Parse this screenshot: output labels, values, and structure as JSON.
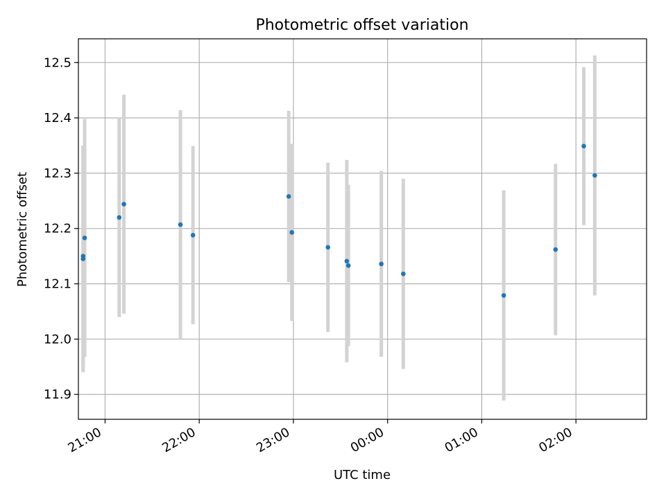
{
  "chart_data": {
    "type": "scatter",
    "title": "Photometric offset variation",
    "xlabel": "UTC time",
    "ylabel": "Photometric offset",
    "x_axis": {
      "type": "time",
      "range": [
        "20:43",
        "26:45"
      ],
      "ticks": [
        {
          "t": "21:00",
          "label": "21:00"
        },
        {
          "t": "22:00",
          "label": "22:00"
        },
        {
          "t": "23:00",
          "label": "23:00"
        },
        {
          "t": "24:00",
          "label": "00:00"
        },
        {
          "t": "25:00",
          "label": "01:00"
        },
        {
          "t": "26:00",
          "label": "02:00"
        }
      ]
    },
    "y_axis": {
      "range": [
        11.855,
        12.543
      ],
      "ticks": [
        {
          "v": 11.9,
          "label": "11.9"
        },
        {
          "v": 12.0,
          "label": "12.0"
        },
        {
          "v": 12.1,
          "label": "12.1"
        },
        {
          "v": 12.2,
          "label": "12.2"
        },
        {
          "v": 12.3,
          "label": "12.3"
        },
        {
          "v": 12.4,
          "label": "12.4"
        },
        {
          "v": 12.5,
          "label": "12.5"
        }
      ]
    },
    "grid": true,
    "marker_color": "#1f77b4",
    "errorbar_color": "#d3d3d3",
    "points": [
      {
        "t": "20:46",
        "y": 12.145,
        "err": 0.205
      },
      {
        "t": "20:46",
        "y": 12.15,
        "err": 0.2
      },
      {
        "t": "20:47",
        "y": 12.183,
        "err": 0.215
      },
      {
        "t": "21:09",
        "y": 12.22,
        "err": 0.18
      },
      {
        "t": "21:12",
        "y": 12.244,
        "err": 0.198
      },
      {
        "t": "21:48",
        "y": 12.207,
        "err": 0.207
      },
      {
        "t": "21:56",
        "y": 12.188,
        "err": 0.161
      },
      {
        "t": "22:57",
        "y": 12.258,
        "err": 0.155
      },
      {
        "t": "22:59",
        "y": 12.193,
        "err": 0.16
      },
      {
        "t": "23:22",
        "y": 12.166,
        "err": 0.153
      },
      {
        "t": "23:34",
        "y": 12.141,
        "err": 0.183
      },
      {
        "t": "23:35",
        "y": 12.133,
        "err": 0.146
      },
      {
        "t": "23:56",
        "y": 12.136,
        "err": 0.168
      },
      {
        "t": "24:10",
        "y": 12.118,
        "err": 0.172
      },
      {
        "t": "25:14",
        "y": 12.079,
        "err": 0.19
      },
      {
        "t": "25:47",
        "y": 12.162,
        "err": 0.155
      },
      {
        "t": "26:05",
        "y": 12.349,
        "err": 0.143
      },
      {
        "t": "26:12",
        "y": 12.296,
        "err": 0.217
      }
    ]
  }
}
